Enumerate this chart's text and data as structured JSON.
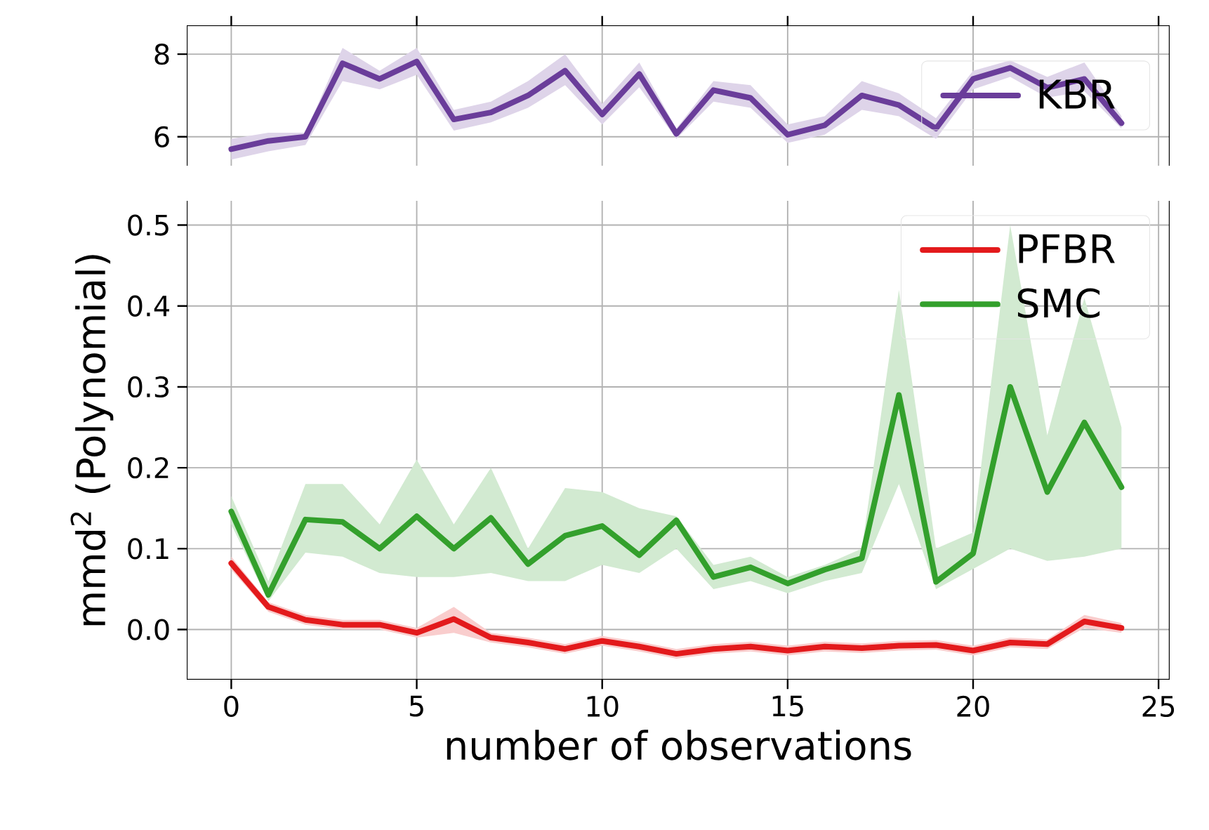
{
  "chart_data": [
    {
      "type": "line",
      "xlim": [
        -1.2,
        25.3
      ],
      "ylim": [
        5.3,
        8.7
      ],
      "xticks": [
        0,
        5,
        10,
        15,
        20,
        25
      ],
      "yticks": [
        6,
        8
      ],
      "grid": true,
      "legend": "right",
      "tick_labels": "y",
      "x": [
        0,
        1,
        2,
        3,
        4,
        5,
        6,
        7,
        8,
        9,
        10,
        11,
        12,
        13,
        14,
        15,
        16,
        17,
        18,
        19,
        20,
        21,
        22,
        23,
        24
      ],
      "series": [
        {
          "name": "KBR",
          "color": "#6a3d9a",
          "values": [
            5.7,
            5.9,
            6.0,
            7.78,
            7.4,
            7.82,
            6.42,
            6.59,
            7.0,
            7.6,
            6.54,
            7.52,
            6.07,
            7.13,
            6.94,
            6.05,
            6.28,
            7.0,
            6.77,
            6.2,
            7.4,
            7.67,
            7.19,
            7.4,
            6.33
          ],
          "lower": [
            5.45,
            5.65,
            5.8,
            7.35,
            7.15,
            7.5,
            6.15,
            6.35,
            6.7,
            7.25,
            6.3,
            7.2,
            5.95,
            6.85,
            6.7,
            5.85,
            6.05,
            6.65,
            6.5,
            5.95,
            7.15,
            7.45,
            6.95,
            7.1,
            6.2
          ],
          "upper": [
            5.95,
            6.1,
            6.1,
            8.15,
            7.6,
            8.15,
            6.65,
            6.85,
            7.35,
            8.0,
            6.8,
            7.8,
            6.2,
            7.35,
            7.25,
            6.3,
            6.5,
            7.35,
            7.05,
            6.45,
            7.6,
            7.85,
            7.45,
            7.8,
            6.5
          ]
        }
      ]
    },
    {
      "type": "line",
      "xlabel": "number of observations",
      "ylabel": "mmd$^{2}$ (Polynomial)",
      "xlim": [
        -1.2,
        25.3
      ],
      "ylim": [
        -0.062,
        0.53
      ],
      "xticks": [
        0,
        5,
        10,
        15,
        20,
        25
      ],
      "yticks": [
        {
          "value": 0,
          "label": "0.0"
        },
        {
          "value": 0.1,
          "label": "0.1"
        },
        {
          "value": 0.2,
          "label": "0.2"
        },
        {
          "value": 0.3,
          "label": "0.3"
        },
        {
          "value": 0.4,
          "label": "0.4"
        },
        {
          "value": 0.5,
          "label": "0.5"
        }
      ],
      "grid": true,
      "legend": "top right",
      "x": [
        0,
        1,
        2,
        3,
        4,
        5,
        6,
        7,
        8,
        9,
        10,
        11,
        12,
        13,
        14,
        15,
        16,
        17,
        18,
        19,
        20,
        21,
        22,
        23,
        24
      ],
      "series": [
        {
          "name": "PFBR",
          "color": "#e31a1c",
          "values": [
            0.082,
            0.028,
            0.012,
            0.006,
            0.006,
            -0.004,
            0.013,
            -0.01,
            -0.016,
            -0.024,
            -0.014,
            -0.021,
            -0.03,
            -0.024,
            -0.021,
            -0.026,
            -0.021,
            -0.023,
            -0.02,
            -0.019,
            -0.026,
            -0.016,
            -0.018,
            0.01,
            0.002
          ],
          "lower": [
            0.074,
            0.022,
            0.006,
            0.0,
            0.0,
            -0.01,
            -0.004,
            -0.016,
            -0.022,
            -0.03,
            -0.02,
            -0.027,
            -0.036,
            -0.03,
            -0.027,
            -0.032,
            -0.027,
            -0.029,
            -0.026,
            -0.025,
            -0.032,
            -0.022,
            -0.024,
            0.002,
            -0.004
          ],
          "upper": [
            0.09,
            0.034,
            0.018,
            0.012,
            0.012,
            0.002,
            0.028,
            -0.004,
            -0.01,
            -0.018,
            -0.008,
            -0.015,
            -0.024,
            -0.018,
            -0.015,
            -0.02,
            -0.015,
            -0.017,
            -0.014,
            -0.013,
            -0.02,
            -0.01,
            -0.012,
            0.018,
            0.008
          ]
        },
        {
          "name": "SMC",
          "color": "#33a02c",
          "values": [
            0.146,
            0.043,
            0.136,
            0.133,
            0.1,
            0.14,
            0.1,
            0.138,
            0.081,
            0.116,
            0.128,
            0.092,
            0.135,
            0.065,
            0.077,
            0.057,
            0.074,
            0.088,
            0.29,
            0.059,
            0.094,
            0.3,
            0.17,
            0.256,
            0.176
          ],
          "lower": [
            0.13,
            0.035,
            0.095,
            0.09,
            0.07,
            0.065,
            0.065,
            0.07,
            0.06,
            0.06,
            0.08,
            0.07,
            0.1,
            0.05,
            0.06,
            0.045,
            0.06,
            0.07,
            0.18,
            0.05,
            0.075,
            0.1,
            0.085,
            0.09,
            0.1
          ],
          "upper": [
            0.165,
            0.06,
            0.18,
            0.18,
            0.13,
            0.21,
            0.13,
            0.2,
            0.1,
            0.175,
            0.17,
            0.15,
            0.14,
            0.08,
            0.09,
            0.065,
            0.08,
            0.1,
            0.42,
            0.1,
            0.12,
            0.5,
            0.24,
            0.41,
            0.25
          ]
        }
      ]
    }
  ]
}
